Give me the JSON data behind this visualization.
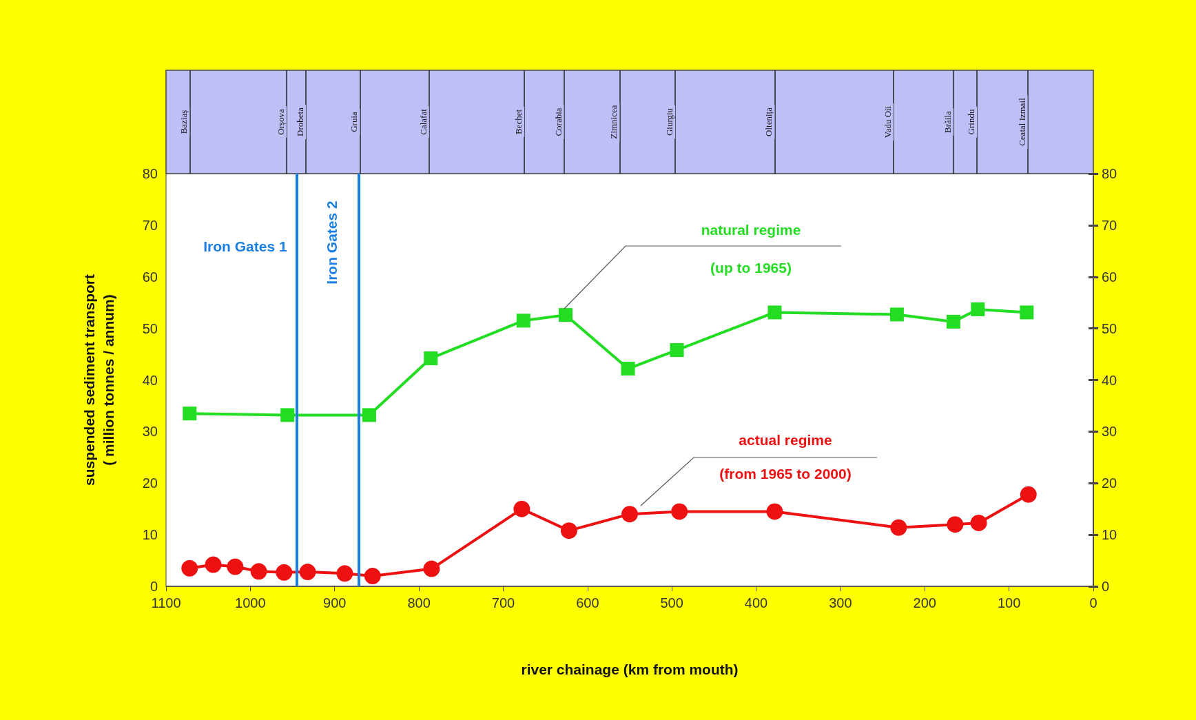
{
  "chart_data": {
    "type": "line",
    "xlabel": "river chainage (km from mouth)",
    "ylabel": "suspended sediment transport\n( million tonnes / annum)",
    "xlim": [
      1100,
      0
    ],
    "xticks": [
      1100,
      1000,
      900,
      800,
      700,
      600,
      500,
      400,
      300,
      200,
      100,
      0
    ],
    "ylim": [
      0,
      80
    ],
    "yticks": [
      0,
      10,
      20,
      30,
      40,
      50,
      60,
      70,
      80
    ],
    "y2lim": [
      0,
      80
    ],
    "y2ticks": [
      0,
      10,
      20,
      30,
      40,
      50,
      60,
      70,
      80
    ],
    "grid": false,
    "series": [
      {
        "color": "#22dd22",
        "marker": "square",
        "x": [
          1072,
          956,
          859,
          786,
          676,
          626,
          552,
          494,
          378,
          233,
          166,
          137,
          79
        ],
        "values": [
          33.5,
          33.2,
          33.2,
          44.2,
          51.5,
          52.6,
          42.2,
          45.8,
          53.1,
          52.7,
          51.3,
          53.7,
          53.1
        ]
      },
      {
        "color": "#ee1111",
        "marker": "circle",
        "x": [
          1072,
          1044,
          1018,
          990,
          960,
          932,
          888,
          855,
          785,
          678,
          622,
          550,
          491,
          378,
          231,
          164,
          136,
          77
        ],
        "values": [
          3.5,
          4.2,
          3.8,
          2.9,
          2.7,
          2.8,
          2.5,
          2.0,
          3.4,
          15.0,
          10.8,
          14.0,
          14.5,
          14.5,
          11.4,
          12.0,
          12.3,
          17.8
        ]
      }
    ],
    "ref_lines": [
      {
        "axis": "x",
        "value": 945,
        "label": "Iron Gates 1",
        "color": "#1a7fe0"
      },
      {
        "axis": "x",
        "value": 871,
        "label": "Iron Gates 2",
        "color": "#1a7fe0"
      },
      {
        "axis": "x",
        "value": 1072,
        "label": "Baziaș"
      },
      {
        "axis": "x",
        "value": 957,
        "label": "Orșova"
      },
      {
        "axis": "x",
        "value": 934,
        "label": "Drobeta"
      },
      {
        "axis": "x",
        "value": 870,
        "label": "Gruia"
      },
      {
        "axis": "x",
        "value": 788,
        "label": "Calafat"
      },
      {
        "axis": "x",
        "value": 675,
        "label": "Bechet"
      },
      {
        "axis": "x",
        "value": 628,
        "label": "Corabia"
      },
      {
        "axis": "x",
        "value": 562,
        "label": "Zimnicea"
      },
      {
        "axis": "x",
        "value": 496,
        "label": "Giurgiu"
      },
      {
        "axis": "x",
        "value": 378,
        "label": "Oltenița"
      },
      {
        "axis": "x",
        "value": 237,
        "label": "Vadu Oii"
      },
      {
        "axis": "x",
        "value": 166,
        "label": "Brăila"
      },
      {
        "axis": "x",
        "value": 138,
        "label": "Grindu"
      },
      {
        "axis": "x",
        "value": 78,
        "label": "Ceatal Izmail"
      }
    ],
    "annotations": [
      "natural regime",
      "(up to 1965)",
      "actual regime",
      "(from 1965 to 2000)"
    ]
  }
}
